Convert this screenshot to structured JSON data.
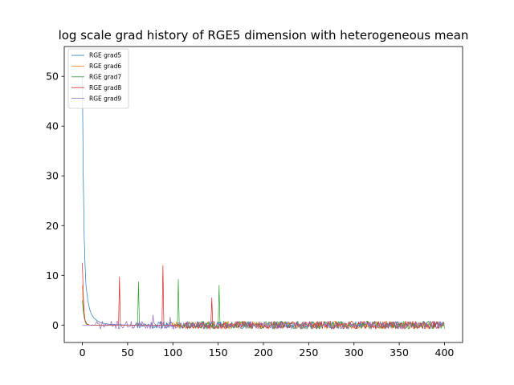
{
  "chart_data": {
    "type": "line",
    "title": "log scale grad history of RGE5 dimension with heterogeneous mean",
    "xlabel": "",
    "ylabel": "",
    "xlim": [
      -20,
      420
    ],
    "ylim": [
      -3.5,
      56
    ],
    "xticks": [
      0,
      50,
      100,
      150,
      200,
      250,
      300,
      350,
      400
    ],
    "yticks": [
      0,
      10,
      20,
      30,
      40,
      50
    ],
    "grid": false,
    "legend_position": "top-left",
    "series": [
      {
        "name": "RGE grad5",
        "color": "#1f77b4",
        "points": [
          [
            0,
            50
          ],
          [
            1,
            30
          ],
          [
            2,
            18
          ],
          [
            3,
            12
          ],
          [
            4,
            8
          ],
          [
            6,
            5
          ],
          [
            8,
            3.2
          ],
          [
            10,
            2.2
          ],
          [
            13,
            1.4
          ],
          [
            16,
            0.9
          ],
          [
            20,
            0.5
          ],
          [
            25,
            0.3
          ],
          [
            30,
            0.15
          ],
          [
            40,
            0.05
          ],
          [
            60,
            0
          ],
          [
            100,
            0
          ],
          [
            400,
            0
          ]
        ],
        "noise_from": 60,
        "noise_amp": 0.7,
        "seed": 11,
        "spikes": []
      },
      {
        "name": "RGE grad6",
        "color": "#ff7f0e",
        "points": [
          [
            0,
            8
          ],
          [
            1,
            4
          ],
          [
            2,
            2
          ],
          [
            3,
            0.8
          ],
          [
            5,
            0.2
          ],
          [
            8,
            0
          ],
          [
            400,
            0
          ]
        ],
        "noise_from": 100,
        "noise_amp": 0.8,
        "seed": 23,
        "spikes": []
      },
      {
        "name": "RGE grad7",
        "color": "#2ca02c",
        "points": [
          [
            0,
            5
          ],
          [
            1,
            3
          ],
          [
            2,
            1.5
          ],
          [
            4,
            0.3
          ],
          [
            6,
            0
          ],
          [
            400,
            0
          ]
        ],
        "noise_from": 110,
        "noise_amp": 0.8,
        "seed": 37,
        "spikes": [
          [
            62,
            8.7
          ],
          [
            106,
            9.2
          ],
          [
            151,
            8.0
          ]
        ]
      },
      {
        "name": "RGE grad8",
        "color": "#d62728",
        "points": [
          [
            0,
            12.5
          ],
          [
            1,
            6
          ],
          [
            2,
            2.5
          ],
          [
            3,
            1
          ],
          [
            5,
            0.2
          ],
          [
            8,
            0
          ],
          [
            400,
            0
          ]
        ],
        "noise_from": 110,
        "noise_amp": 0.8,
        "seed": 53,
        "spikes": [
          [
            41,
            9.7
          ],
          [
            89,
            12.0
          ],
          [
            143,
            5.5
          ]
        ]
      },
      {
        "name": "RGE grad9",
        "color": "#9467bd",
        "points": [
          [
            0,
            0
          ],
          [
            400,
            0
          ]
        ],
        "noise_from": 15,
        "noise_amp": 0.8,
        "seed": 71,
        "spikes": [
          [
            78,
            2.0
          ],
          [
            97,
            1.6
          ]
        ]
      }
    ]
  }
}
